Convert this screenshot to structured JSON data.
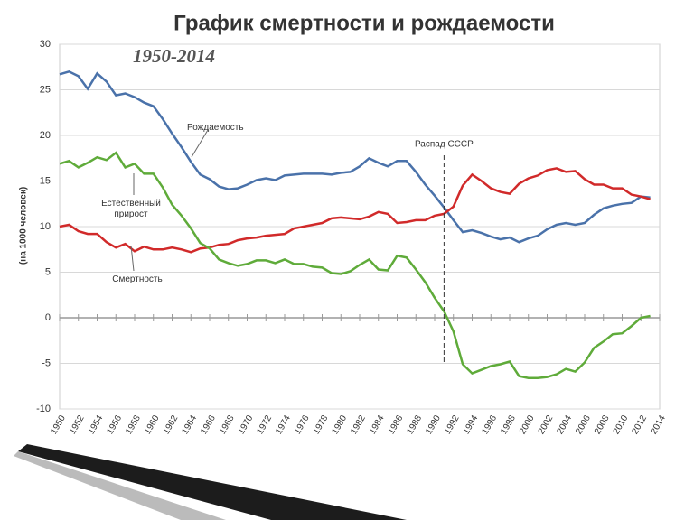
{
  "chart_data": {
    "type": "line",
    "title": "График смертности и рождаемости",
    "subtitle": "1950-2014",
    "y_label": "(на 1000 человек)",
    "x": [
      1950,
      1951,
      1952,
      1953,
      1954,
      1955,
      1956,
      1957,
      1958,
      1959,
      1960,
      1961,
      1962,
      1963,
      1964,
      1965,
      1966,
      1967,
      1968,
      1969,
      1970,
      1971,
      1972,
      1973,
      1974,
      1975,
      1976,
      1977,
      1978,
      1979,
      1980,
      1981,
      1982,
      1983,
      1984,
      1985,
      1986,
      1987,
      1988,
      1989,
      1990,
      1991,
      1992,
      1993,
      1994,
      1995,
      1996,
      1997,
      1998,
      1999,
      2000,
      2001,
      2002,
      2003,
      2004,
      2005,
      2006,
      2007,
      2008,
      2009,
      2010,
      2011,
      2012,
      2013
    ],
    "series": [
      {
        "name": "Рождаемость",
        "color": "#4a72aa",
        "values": [
          26.7,
          27.0,
          26.5,
          25.1,
          26.8,
          25.9,
          24.4,
          24.6,
          24.2,
          23.6,
          23.2,
          21.8,
          20.2,
          18.7,
          17.1,
          15.7,
          15.2,
          14.4,
          14.1,
          14.2,
          14.6,
          15.1,
          15.3,
          15.1,
          15.6,
          15.7,
          15.8,
          15.8,
          15.8,
          15.7,
          15.9,
          16.0,
          16.6,
          17.5,
          17.0,
          16.6,
          17.2,
          17.2,
          16.0,
          14.6,
          13.4,
          12.1,
          10.7,
          9.4,
          9.6,
          9.3,
          8.9,
          8.6,
          8.8,
          8.3,
          8.7,
          9.0,
          9.7,
          10.2,
          10.4,
          10.2,
          10.4,
          11.3,
          12.0,
          12.3,
          12.5,
          12.6,
          13.3,
          13.2
        ]
      },
      {
        "name": "Смертность",
        "color": "#d12a2a",
        "values": [
          10.0,
          10.2,
          9.5,
          9.2,
          9.2,
          8.3,
          7.7,
          8.1,
          7.3,
          7.8,
          7.5,
          7.5,
          7.7,
          7.5,
          7.2,
          7.6,
          7.7,
          8.0,
          8.1,
          8.5,
          8.7,
          8.8,
          9.0,
          9.1,
          9.2,
          9.8,
          10.0,
          10.2,
          10.4,
          10.9,
          11.0,
          10.9,
          10.8,
          11.1,
          11.6,
          11.4,
          10.4,
          10.5,
          10.7,
          10.7,
          11.2,
          11.4,
          12.2,
          14.5,
          15.7,
          15.0,
          14.2,
          13.8,
          13.6,
          14.7,
          15.3,
          15.6,
          16.2,
          16.4,
          16.0,
          16.1,
          15.2,
          14.6,
          14.6,
          14.2,
          14.2,
          13.5,
          13.3,
          13.0
        ]
      },
      {
        "name": "Естественный прирост",
        "color": "#5fab3a",
        "values": [
          16.9,
          17.2,
          16.5,
          17.0,
          17.6,
          17.3,
          18.1,
          16.5,
          16.9,
          15.8,
          15.8,
          14.3,
          12.4,
          11.2,
          9.8,
          8.2,
          7.6,
          6.4,
          6.0,
          5.7,
          5.9,
          6.3,
          6.3,
          6.0,
          6.4,
          5.9,
          5.9,
          5.6,
          5.5,
          4.9,
          4.8,
          5.1,
          5.8,
          6.4,
          5.3,
          5.2,
          6.8,
          6.6,
          5.3,
          3.9,
          2.2,
          0.7,
          -1.5,
          -5.1,
          -6.1,
          -5.7,
          -5.3,
          -5.1,
          -4.8,
          -6.4,
          -6.6,
          -6.6,
          -6.5,
          -6.2,
          -5.6,
          -5.9,
          -4.9,
          -3.3,
          -2.6,
          -1.8,
          -1.7,
          -0.9,
          0.0,
          0.2
        ]
      }
    ],
    "annotation": {
      "text": "Распад СССР",
      "x": 1991
    },
    "xlim": [
      1950,
      2014
    ],
    "xticks": [
      1950,
      1952,
      1954,
      1956,
      1958,
      1960,
      1962,
      1964,
      1966,
      1968,
      1970,
      1972,
      1974,
      1976,
      1978,
      1980,
      1982,
      1984,
      1986,
      1988,
      1990,
      1992,
      1994,
      1996,
      1998,
      2000,
      2002,
      2004,
      2006,
      2008,
      2010,
      2012,
      2014
    ],
    "ylim": [
      -10,
      30
    ],
    "yticks": [
      -10,
      -5,
      0,
      5,
      10,
      15,
      20,
      25,
      30
    ],
    "grid": true
  }
}
